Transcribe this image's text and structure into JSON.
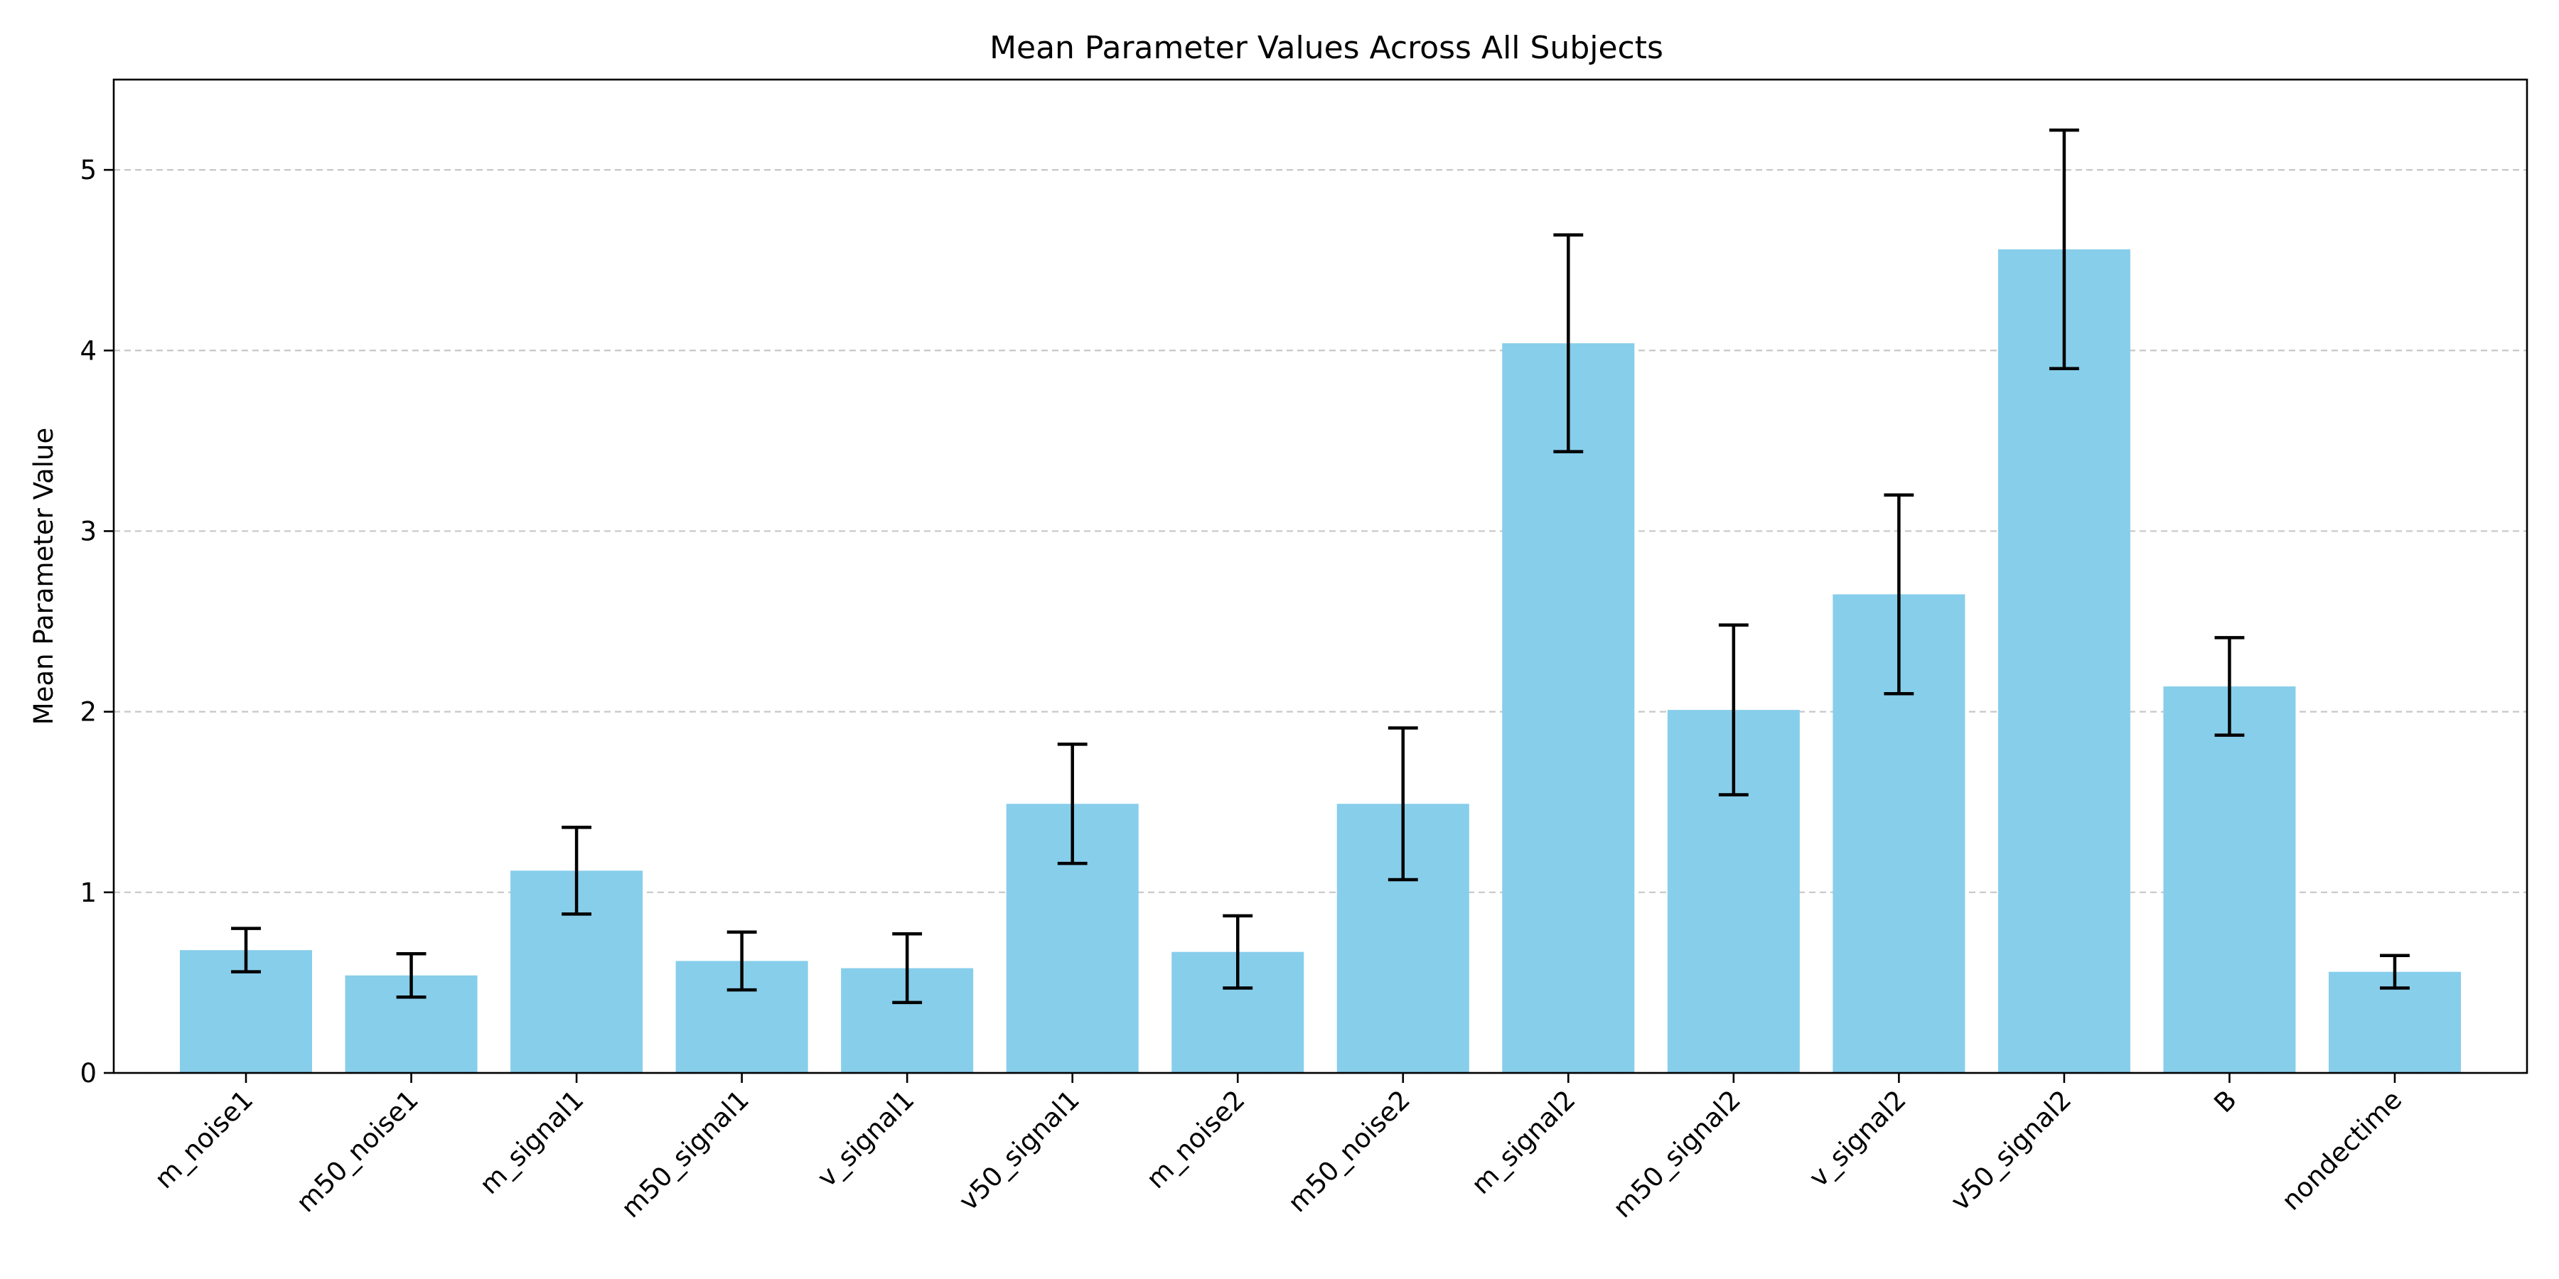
{
  "chart_data": {
    "type": "bar",
    "title": "Mean Parameter Values Across All Subjects",
    "xlabel": "",
    "ylabel": "Mean Parameter Value",
    "categories": [
      "m_noise1",
      "m50_noise1",
      "m_signal1",
      "m50_signal1",
      "v_signal1",
      "v50_signal1",
      "m_noise2",
      "m50_noise2",
      "m_signal2",
      "m50_signal2",
      "v_signal2",
      "v50_signal2",
      "B",
      "nondectime"
    ],
    "values": [
      0.68,
      0.54,
      1.12,
      0.62,
      0.58,
      1.49,
      0.67,
      1.49,
      4.04,
      2.01,
      2.65,
      4.56,
      2.14,
      0.56
    ],
    "errors": [
      0.12,
      0.12,
      0.24,
      0.16,
      0.19,
      0.33,
      0.2,
      0.42,
      0.6,
      0.47,
      0.55,
      0.66,
      0.27,
      0.09
    ],
    "ylim": [
      0,
      5.5
    ],
    "yticks": [
      0,
      1,
      2,
      3,
      4,
      5
    ],
    "grid": "y-dashed",
    "bar_color": "#87CEEB"
  }
}
